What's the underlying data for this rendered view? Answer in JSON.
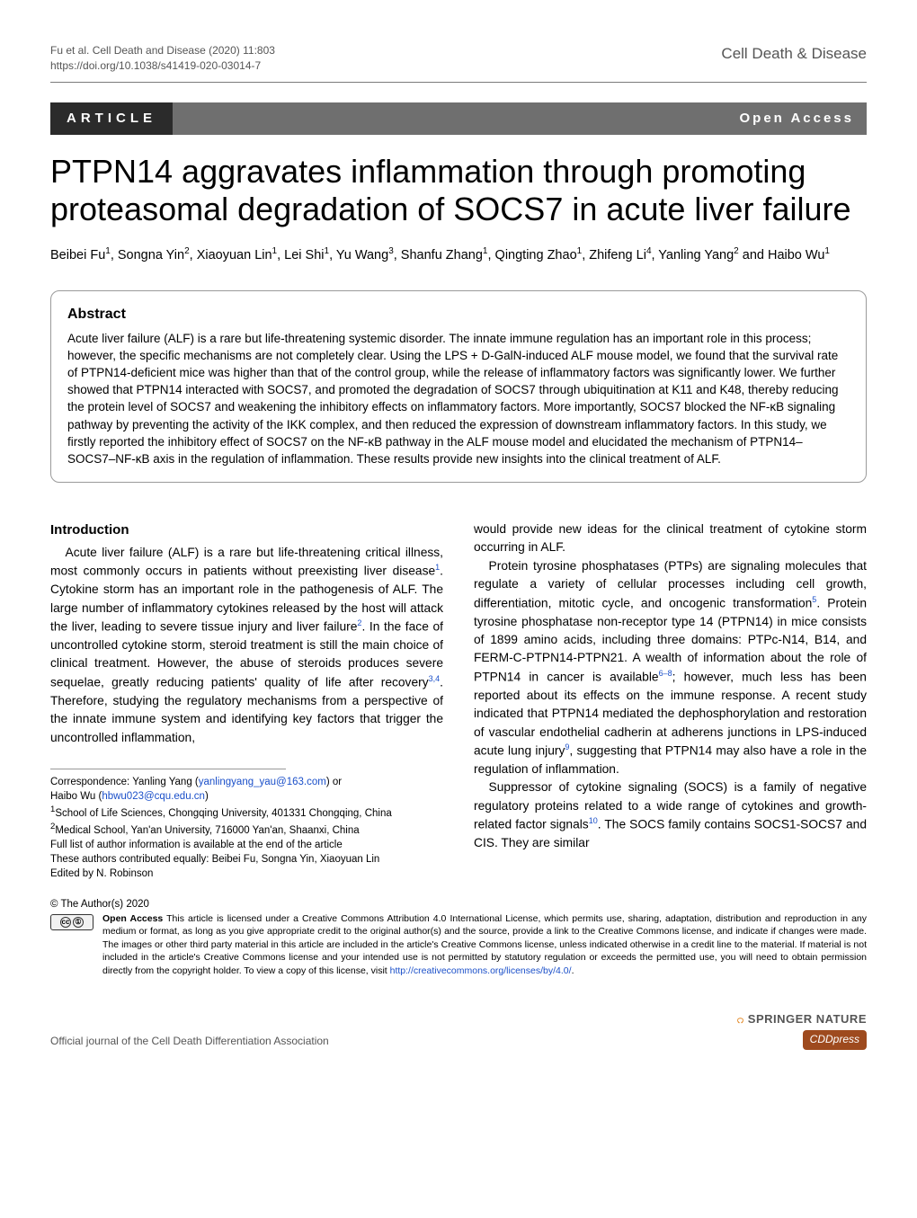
{
  "header": {
    "citation_line1": "Fu et al. Cell Death and Disease           (2020) 11:803",
    "doi": "https://doi.org/10.1038/s41419-020-03014-7",
    "journal": "Cell Death & Disease"
  },
  "bar": {
    "article": "ARTICLE",
    "open_access": "Open Access"
  },
  "title": "PTPN14 aggravates inflammation through promoting proteasomal degradation of SOCS7 in acute liver failure",
  "authors_html": "Beibei Fu<sup>1</sup>, Songna Yin<sup>2</sup>, Xiaoyuan Lin<sup>1</sup>, Lei Shi<sup>1</sup>, Yu Wang<sup>3</sup>, Shanfu Zhang<sup>1</sup>, Qingting Zhao<sup>1</sup>, Zhifeng Li<sup>4</sup>, Yanling Yang<sup>2</sup> and Haibo Wu<sup>1</sup>",
  "abstract": {
    "heading": "Abstract",
    "text": "Acute liver failure (ALF) is a rare but life-threatening systemic disorder. The innate immune regulation has an important role in this process; however, the specific mechanisms are not completely clear. Using the LPS + D-GalN-induced ALF mouse model, we found that the survival rate of PTPN14-deficient mice was higher than that of the control group, while the release of inflammatory factors was significantly lower. We further showed that PTPN14 interacted with SOCS7, and promoted the degradation of SOCS7 through ubiquitination at K11 and K48, thereby reducing the protein level of SOCS7 and weakening the inhibitory effects on inflammatory factors. More importantly, SOCS7 blocked the NF-κB signaling pathway by preventing the activity of the IKK complex, and then reduced the expression of downstream inflammatory factors. In this study, we firstly reported the inhibitory effect of SOCS7 on the NF-κB pathway in the ALF mouse model and elucidated the mechanism of PTPN14–SOCS7–NF-κB axis in the regulation of inflammation. These results provide new insights into the clinical treatment of ALF."
  },
  "intro": {
    "heading": "Introduction",
    "p1_html": "Acute liver failure (ALF) is a rare but life-threatening critical illness, most commonly occurs in patients without preexisting liver disease<sup>1</sup>. Cytokine storm has an important role in the pathogenesis of ALF. The large number of inflammatory cytokines released by the host will attack the liver, leading to severe tissue injury and liver failure<sup>2</sup>. In the face of uncontrolled cytokine storm, steroid treatment is still the main choice of clinical treatment. However, the abuse of steroids produces severe sequelae, greatly reducing patients' quality of life after recovery<sup>3,4</sup>. Therefore, studying the regulatory mechanisms from a perspective of the innate immune system and identifying key factors that trigger the uncontrolled inflammation,",
    "p2_html": "would provide new ideas for the clinical treatment of cytokine storm occurring in ALF.",
    "p3_html": "Protein tyrosine phosphatases (PTPs) are signaling molecules that regulate a variety of cellular processes including cell growth, differentiation, mitotic cycle, and oncogenic transformation<sup>5</sup>. Protein tyrosine phosphatase non-receptor type 14 (PTPN14) in mice consists of 1899 amino acids, including three domains: PTPc-N14, B14, and FERM-C-PTPN14-PTPN21. A wealth of information about the role of PTPN14 in cancer is available<sup>6–8</sup>; however, much less has been reported about its effects on the immune response. A recent study indicated that PTPN14 mediated the dephosphorylation and restoration of vascular endothelial cadherin at adherens junctions in LPS-induced acute lung injury<sup>9</sup>, suggesting that PTPN14 may also have a role in the regulation of inflammation.",
    "p4_html": "Suppressor of cytokine signaling (SOCS) is a family of negative regulatory proteins related to a wide range of cytokines and growth-related factor signals<sup>10</sup>. The SOCS family contains SOCS1-SOCS7 and CIS. They are similar"
  },
  "correspondence": {
    "line1_html": "Correspondence: Yanling Yang (<a href=\"#\">yanlingyang_yau@163.com</a>) or",
    "line2_html": "Haibo Wu (<a href=\"#\">hbwu023@cqu.edu.cn</a>)",
    "aff1": "1School of Life Sciences, Chongqing University, 401331 Chongqing, China",
    "aff2": "2Medical School, Yan'an University, 716000 Yan'an, Shaanxi, China",
    "full_list": "Full list of author information is available at the end of the article",
    "equal": "These authors contributed equally: Beibei Fu, Songna Yin, Xiaoyuan Lin",
    "edited": "Edited by N. Robinson"
  },
  "license": {
    "copyright": "© The Author(s) 2020",
    "text_html": "<b>Open Access</b> This article is licensed under a Creative Commons Attribution 4.0 International License, which permits use, sharing, adaptation, distribution and reproduction in any medium or format, as long as you give appropriate credit to the original author(s) and the source, provide a link to the Creative Commons license, and indicate if changes were made. The images or other third party material in this article are included in the article's Creative Commons license, unless indicated otherwise in a credit line to the material. If material is not included in the article's Creative Commons license and your intended use is not permitted by statutory regulation or exceeds the permitted use, you will need to obtain permission directly from the copyright holder. To view a copy of this license, visit <a href=\"#\">http://creativecommons.org/licenses/by/4.0/</a>."
  },
  "footer": {
    "assoc": "Official journal of the Cell Death Differentiation Association",
    "springer": "SPRINGER NATURE",
    "cdd": "CDDpress"
  },
  "colors": {
    "bar_bg": "#6f6f6f",
    "article_bg": "#2b2b2b",
    "link": "#1a4fc9",
    "springer_accent": "#e38b2b",
    "cdd_bg": "#9e4a1e"
  }
}
